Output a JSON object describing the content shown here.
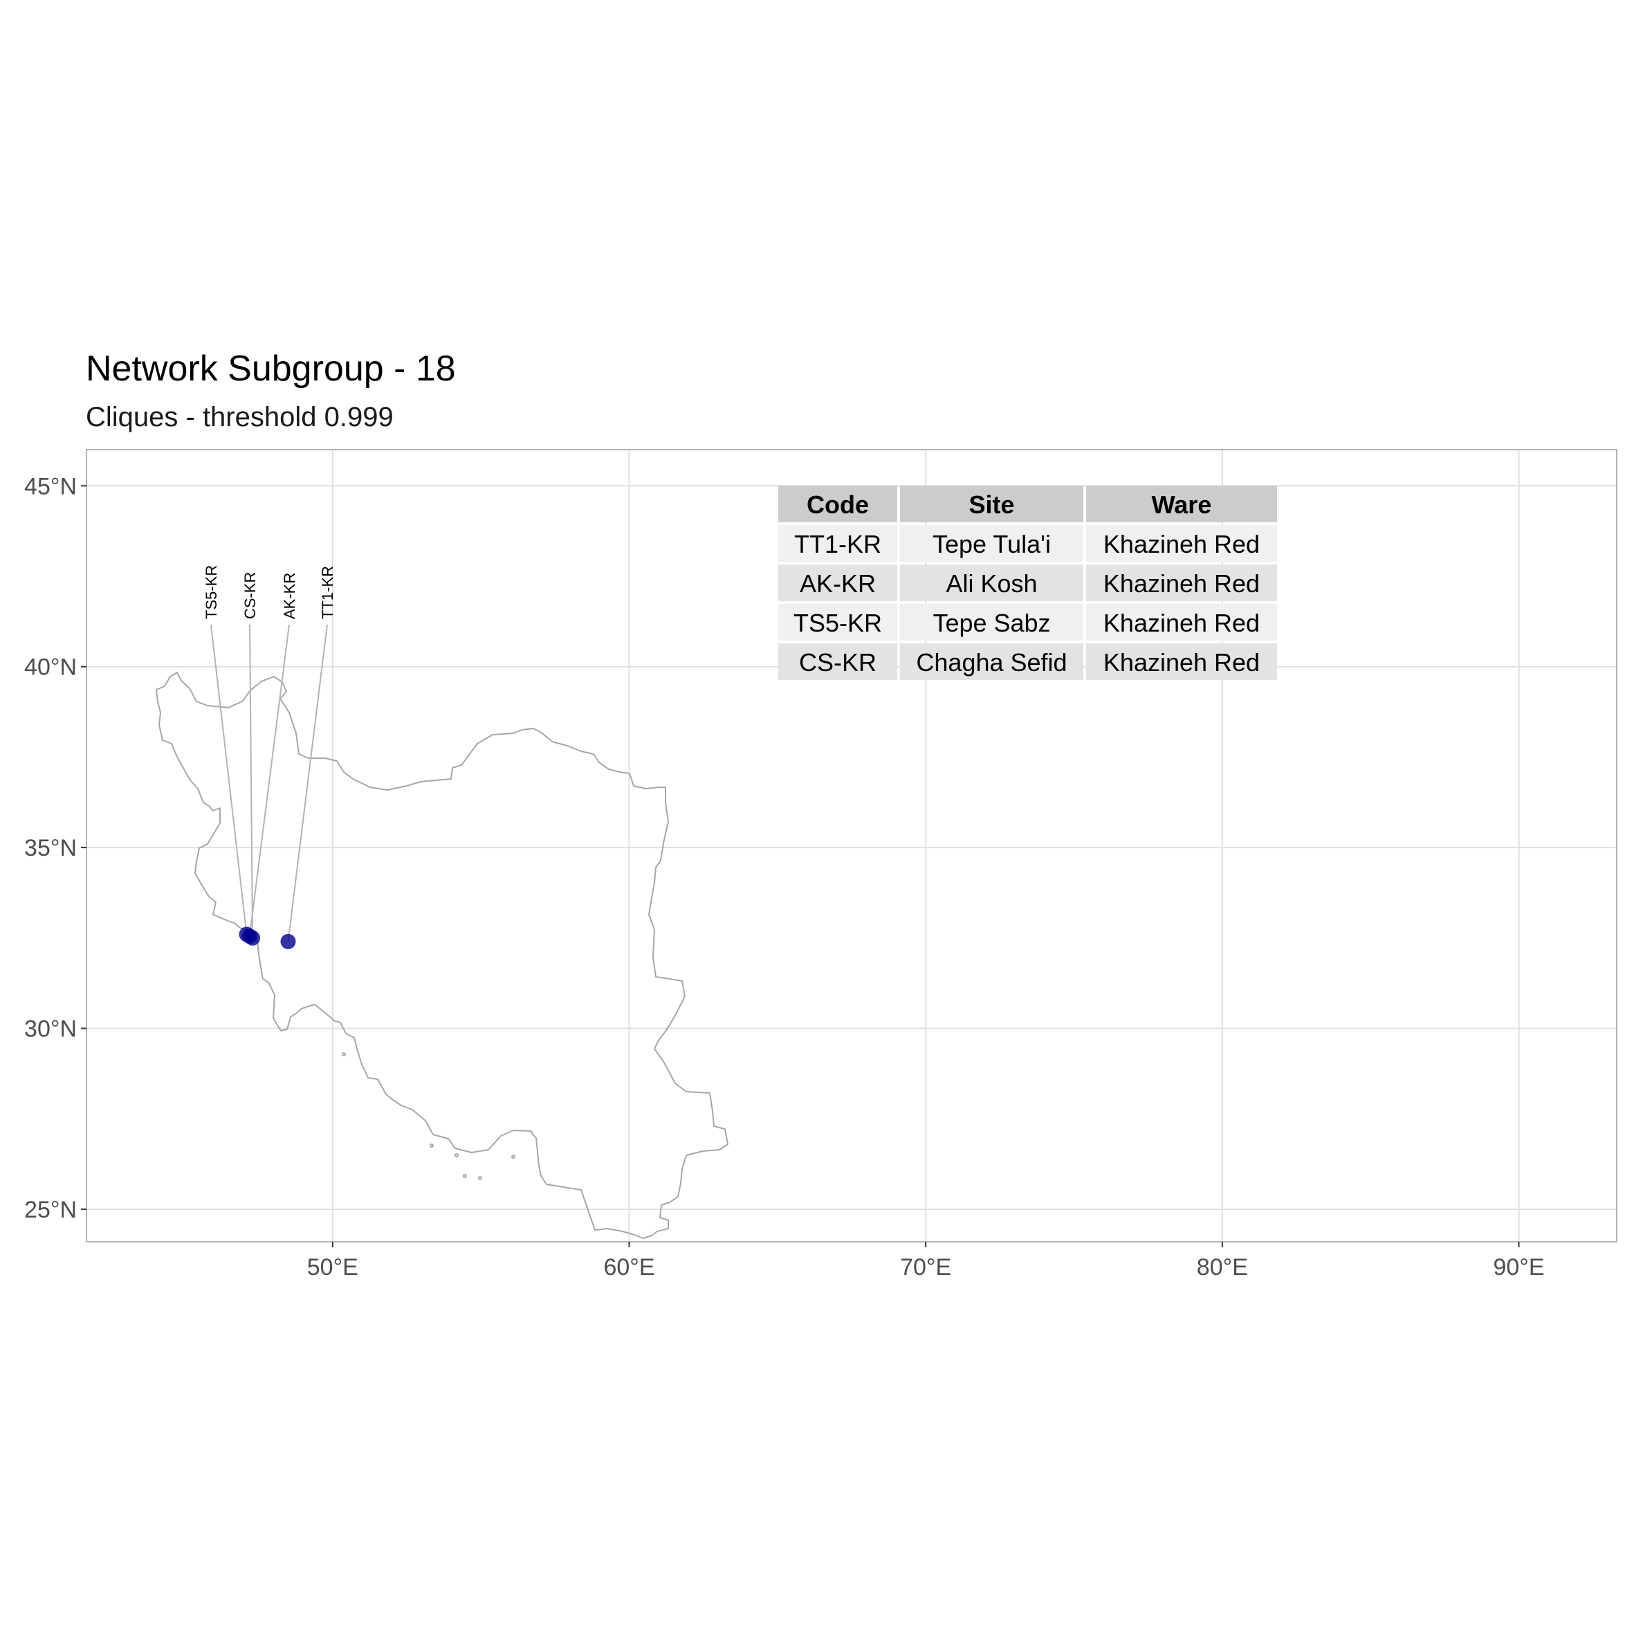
{
  "map": {
    "title": "Network Subgroup - 18",
    "subtitle": "Cliques - threshold 0.999",
    "x_ticks": [
      {
        "value": 50,
        "label": "50°E"
      },
      {
        "value": 60,
        "label": "60°E"
      },
      {
        "value": 70,
        "label": "70°E"
      },
      {
        "value": 80,
        "label": "80°E"
      },
      {
        "value": 90,
        "label": "90°E"
      }
    ],
    "y_ticks": [
      {
        "value": 25,
        "label": "25°N"
      },
      {
        "value": 30,
        "label": "30°N"
      },
      {
        "value": 35,
        "label": "35°N"
      },
      {
        "value": 40,
        "label": "40°N"
      },
      {
        "value": 45,
        "label": "45°N"
      }
    ],
    "xlim": [
      41.7,
      93.3
    ],
    "ylim": [
      24.1,
      46.0
    ],
    "colors": {
      "point": "#00008b",
      "border": "#a6a6a6",
      "grid": "#e0e0e0"
    },
    "sites": [
      {
        "code": "TS5-KR",
        "lon": 47.1,
        "lat": 32.6
      },
      {
        "code": "CS-KR",
        "lon": 47.3,
        "lat": 32.5
      },
      {
        "code": "AK-KR",
        "lon": 47.2,
        "lat": 32.55
      },
      {
        "code": "TT1-KR",
        "lon": 48.5,
        "lat": 32.4
      }
    ],
    "table": {
      "headers": [
        "Code",
        "Site",
        "Ware"
      ],
      "rows": [
        [
          "TT1-KR",
          "Tepe Tula'i",
          "Khazineh Red"
        ],
        [
          "AK-KR",
          "Ali Kosh",
          "Khazineh Red"
        ],
        [
          "TS5-KR",
          "Tepe Sabz",
          "Khazineh Red"
        ],
        [
          "CS-KR",
          "Chagha Sefid",
          "Khazineh Red"
        ]
      ]
    }
  }
}
